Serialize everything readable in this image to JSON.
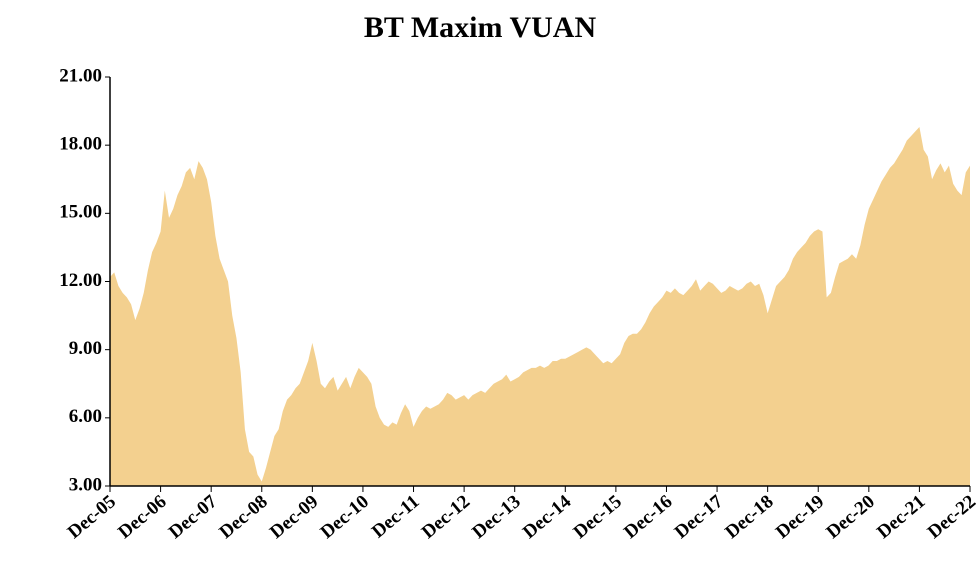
{
  "chart_data": {
    "type": "area",
    "title": "BT Maxim VUAN",
    "color": "#f3d08f",
    "categories": [
      "Dec-05",
      null,
      null,
      null,
      null,
      null,
      null,
      null,
      null,
      null,
      null,
      null,
      "Dec-06",
      null,
      null,
      null,
      null,
      null,
      null,
      null,
      null,
      null,
      null,
      null,
      "Dec-07",
      null,
      null,
      null,
      null,
      null,
      null,
      null,
      null,
      null,
      null,
      null,
      "Dec-08",
      null,
      null,
      null,
      null,
      null,
      null,
      null,
      null,
      null,
      null,
      null,
      "Dec-09",
      null,
      null,
      null,
      null,
      null,
      null,
      null,
      null,
      null,
      null,
      null,
      "Dec-10",
      null,
      null,
      null,
      null,
      null,
      null,
      null,
      null,
      null,
      null,
      null,
      "Dec-11",
      null,
      null,
      null,
      null,
      null,
      null,
      null,
      null,
      null,
      null,
      null,
      "Dec-12",
      null,
      null,
      null,
      null,
      null,
      null,
      null,
      null,
      null,
      null,
      null,
      "Dec-13",
      null,
      null,
      null,
      null,
      null,
      null,
      null,
      null,
      null,
      null,
      null,
      "Dec-14",
      null,
      null,
      null,
      null,
      null,
      null,
      null,
      null,
      null,
      null,
      null,
      "Dec-15",
      null,
      null,
      null,
      null,
      null,
      null,
      null,
      null,
      null,
      null,
      null,
      "Dec-16",
      null,
      null,
      null,
      null,
      null,
      null,
      null,
      null,
      null,
      null,
      null,
      "Dec-17",
      null,
      null,
      null,
      null,
      null,
      null,
      null,
      null,
      null,
      null,
      null,
      "Dec-18",
      null,
      null,
      null,
      null,
      null,
      null,
      null,
      null,
      null,
      null,
      null,
      "Dec-19",
      null,
      null,
      null,
      null,
      null,
      null,
      null,
      null,
      null,
      null,
      null,
      "Dec-20",
      null,
      null,
      null,
      null,
      null,
      null,
      null,
      null,
      null,
      null,
      null,
      "Dec-21",
      null,
      null,
      null,
      null,
      null,
      null,
      null,
      null,
      null,
      null,
      null,
      "Dec-22"
    ],
    "values": [
      12.2,
      12.4,
      11.8,
      11.5,
      11.3,
      11.0,
      10.3,
      10.8,
      11.5,
      12.5,
      13.3,
      13.7,
      14.2,
      16.0,
      14.8,
      15.2,
      15.8,
      16.2,
      16.8,
      17.0,
      16.5,
      17.3,
      17.0,
      16.5,
      15.5,
      14.0,
      13.0,
      12.5,
      12.0,
      10.5,
      9.5,
      8.0,
      5.5,
      4.5,
      4.3,
      3.5,
      3.2,
      3.8,
      4.5,
      5.2,
      5.5,
      6.3,
      6.8,
      7.0,
      7.3,
      7.5,
      8.0,
      8.5,
      9.3,
      8.5,
      7.5,
      7.3,
      7.6,
      7.8,
      7.2,
      7.5,
      7.8,
      7.3,
      7.8,
      8.2,
      8.0,
      7.8,
      7.5,
      6.5,
      6.0,
      5.7,
      5.6,
      5.8,
      5.7,
      6.2,
      6.6,
      6.3,
      5.6,
      6.0,
      6.3,
      6.5,
      6.4,
      6.5,
      6.6,
      6.8,
      7.1,
      7.0,
      6.8,
      6.9,
      7.0,
      6.8,
      7.0,
      7.1,
      7.2,
      7.1,
      7.3,
      7.5,
      7.6,
      7.7,
      7.9,
      7.6,
      7.7,
      7.8,
      8.0,
      8.1,
      8.2,
      8.2,
      8.3,
      8.2,
      8.3,
      8.5,
      8.5,
      8.6,
      8.6,
      8.7,
      8.8,
      8.9,
      9.0,
      9.1,
      9.0,
      8.8,
      8.6,
      8.4,
      8.5,
      8.4,
      8.6,
      8.8,
      9.3,
      9.6,
      9.7,
      9.7,
      9.9,
      10.2,
      10.6,
      10.9,
      11.1,
      11.3,
      11.6,
      11.5,
      11.7,
      11.5,
      11.4,
      11.6,
      11.8,
      12.1,
      11.6,
      11.8,
      12.0,
      11.9,
      11.7,
      11.5,
      11.6,
      11.8,
      11.7,
      11.6,
      11.7,
      11.9,
      12.0,
      11.8,
      11.9,
      11.4,
      10.6,
      11.2,
      11.8,
      12.0,
      12.2,
      12.5,
      13.0,
      13.3,
      13.5,
      13.7,
      14.0,
      14.2,
      14.3,
      14.2,
      11.3,
      11.5,
      12.2,
      12.8,
      12.9,
      13.0,
      13.2,
      13.0,
      13.6,
      14.5,
      15.2,
      15.6,
      16.0,
      16.4,
      16.7,
      17.0,
      17.2,
      17.5,
      17.8,
      18.2,
      18.4,
      18.6,
      18.8,
      17.8,
      17.5,
      16.5,
      16.9,
      17.2,
      16.8,
      17.1,
      16.3,
      16.0,
      15.8,
      16.8,
      17.1
    ],
    "ylim": [
      3,
      21
    ],
    "yticks": [
      {
        "value": 3,
        "label": "3.00"
      },
      {
        "value": 6,
        "label": "6.00"
      },
      {
        "value": 9,
        "label": "9.00"
      },
      {
        "value": 12,
        "label": "12.00"
      },
      {
        "value": 15,
        "label": "15.00"
      },
      {
        "value": 18,
        "label": "18.00"
      },
      {
        "value": 21,
        "label": "21.00"
      }
    ],
    "grid": false
  }
}
